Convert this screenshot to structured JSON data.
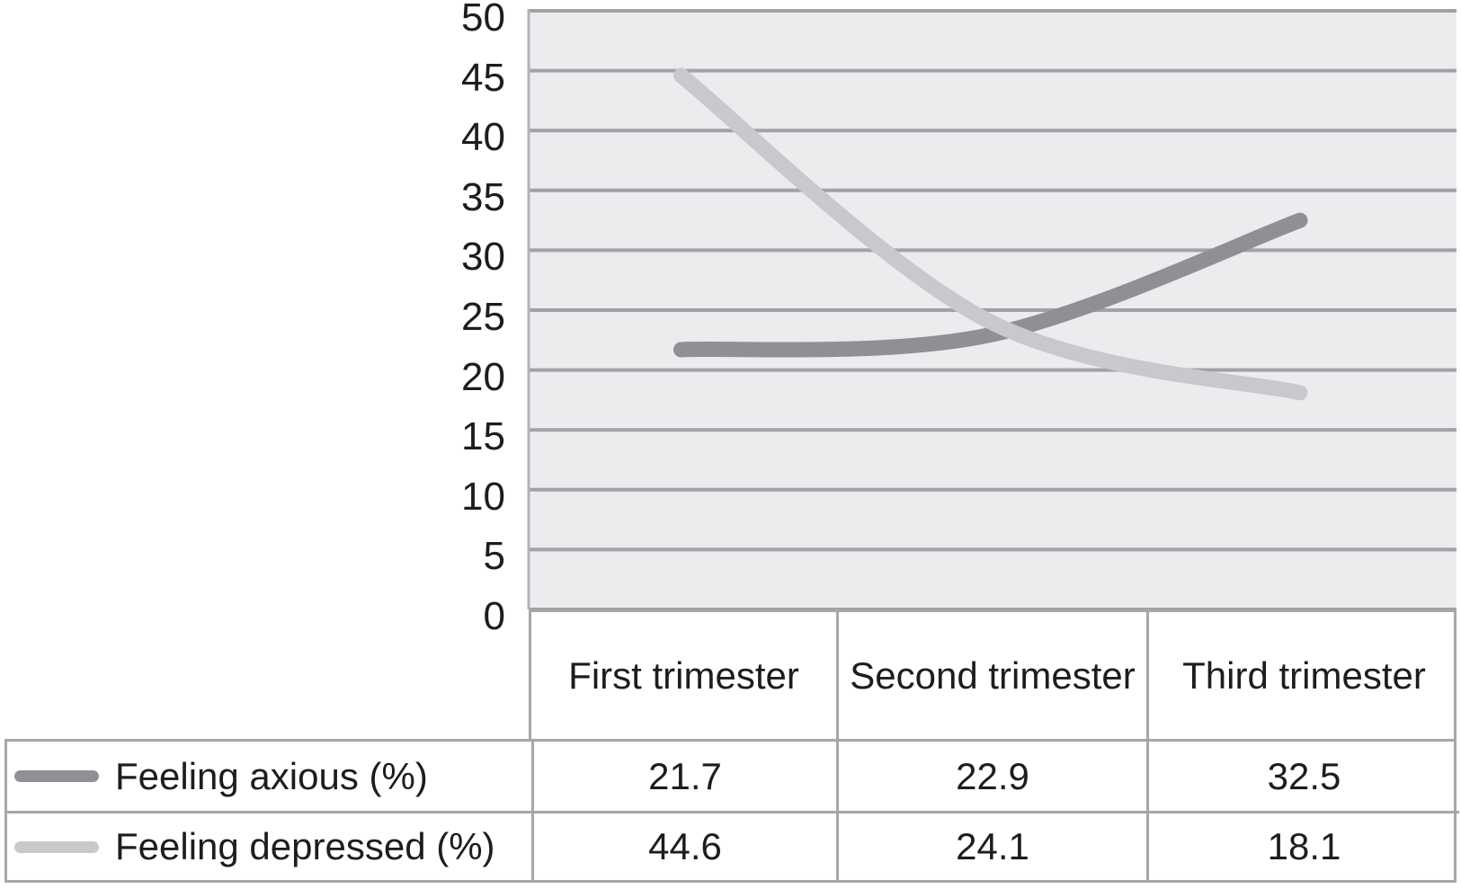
{
  "chart_data": {
    "type": "line",
    "title": "",
    "xlabel": "",
    "ylabel": "",
    "categories": [
      "First trimester",
      "Second trimester",
      "Third trimester"
    ],
    "series": [
      {
        "name": "Feeling axious (%)",
        "values": [
          21.7,
          22.9,
          32.5
        ],
        "color": "#8e9094"
      },
      {
        "name": "Feeling depressed (%)",
        "values": [
          44.6,
          24.1,
          18.1
        ],
        "color": "#c8c9cc"
      }
    ],
    "ylim": [
      0,
      50
    ],
    "y_tick_step": 5,
    "y_ticks": [
      0,
      5,
      10,
      15,
      20,
      25,
      30,
      35,
      40,
      45,
      50
    ],
    "grid": true,
    "smooth_lines": true,
    "legend_position": "table-left",
    "plot_bg_color": "#ebecee",
    "grid_color": "#a0a2a6",
    "axis_line_color": "#b2b4b7",
    "table_border_color": "#a5a7aa",
    "text_color": "#1d1d1d"
  },
  "table": {
    "columns": [
      "First trimester",
      "Second trimester",
      "Third trimester"
    ],
    "rows": [
      {
        "label": "Feeling axious (%)",
        "values": [
          "21.7",
          "22.9",
          "32.5"
        ]
      },
      {
        "label": "Feeling depressed (%)",
        "values": [
          "44.6",
          "24.1",
          "18.1"
        ]
      }
    ]
  }
}
